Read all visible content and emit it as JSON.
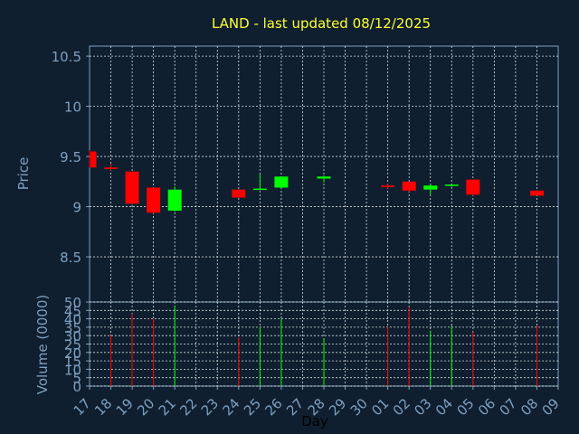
{
  "chart_data": [
    {
      "type": "candlestick",
      "title": "LAND - last updated 08/12/2025",
      "ylabel": "Price",
      "ylim": [
        8.05,
        10.6
      ],
      "yticks": [
        "8.5",
        "9",
        "9.5",
        "10",
        "10.5"
      ],
      "grid": true,
      "colors": {
        "up": "#00ff00",
        "down": "#ff0000",
        "title": "#ffff33",
        "axis": "#7f9fbf",
        "background": "#0f1f2f"
      },
      "candles": [
        {
          "day": "17",
          "open": 9.55,
          "high": 9.56,
          "low": 9.39,
          "close": 9.39
        },
        {
          "day": "18",
          "open": 9.39,
          "high": 9.43,
          "low": 9.36,
          "close": 9.38
        },
        {
          "day": "19",
          "open": 9.35,
          "high": 9.35,
          "low": 9.02,
          "close": 9.03
        },
        {
          "day": "20",
          "open": 9.19,
          "high": 9.19,
          "low": 8.93,
          "close": 8.94
        },
        {
          "day": "21",
          "open": 8.96,
          "high": 9.2,
          "low": 8.95,
          "close": 9.17
        },
        {
          "day": "24",
          "open": 9.17,
          "high": 9.17,
          "low": 9.09,
          "close": 9.09
        },
        {
          "day": "25",
          "open": 9.17,
          "high": 9.32,
          "low": 9.17,
          "close": 9.18
        },
        {
          "day": "26",
          "open": 9.19,
          "high": 9.3,
          "low": 9.19,
          "close": 9.3
        },
        {
          "day": "28",
          "open": 9.28,
          "high": 9.31,
          "low": 9.24,
          "close": 9.3
        },
        {
          "day": "01",
          "open": 9.21,
          "high": 9.23,
          "low": 9.18,
          "close": 9.2
        },
        {
          "day": "02",
          "open": 9.25,
          "high": 9.25,
          "low": 9.15,
          "close": 9.16
        },
        {
          "day": "03",
          "open": 9.17,
          "high": 9.23,
          "low": 9.12,
          "close": 9.21
        },
        {
          "day": "04",
          "open": 9.21,
          "high": 9.22,
          "low": 9.2,
          "close": 9.22
        },
        {
          "day": "05",
          "open": 9.27,
          "high": 9.27,
          "low": 9.11,
          "close": 9.12
        },
        {
          "day": "08",
          "open": 9.16,
          "high": 9.16,
          "low": 9.11,
          "close": 9.11
        }
      ]
    },
    {
      "type": "bar",
      "ylabel": "Volume (0000)",
      "xlabel": "Day",
      "ylim": [
        0,
        50
      ],
      "yticks": [
        "0",
        "5",
        "10",
        "15",
        "20",
        "25",
        "30",
        "35",
        "40",
        "45",
        "50"
      ],
      "grid": true,
      "categories": [
        "17",
        "18",
        "19",
        "20",
        "21",
        "22",
        "23",
        "24",
        "25",
        "26",
        "27",
        "28",
        "29",
        "30",
        "01",
        "02",
        "03",
        "04",
        "05",
        "06",
        "07",
        "08",
        "09"
      ],
      "values": [
        0,
        30,
        43,
        40,
        48,
        0,
        0,
        29,
        35,
        40,
        0,
        28,
        0,
        0,
        35,
        47,
        33,
        36,
        32,
        0,
        0,
        36,
        0
      ],
      "bar_colors": [
        "none",
        "#ff0000",
        "#ff0000",
        "#ff0000",
        "#00ff00",
        "none",
        "none",
        "#ff0000",
        "#00ff00",
        "#00ff00",
        "none",
        "#00ff00",
        "none",
        "none",
        "#ff0000",
        "#ff0000",
        "#00ff00",
        "#00ff00",
        "#ff0000",
        "none",
        "none",
        "#ff0000",
        "none"
      ]
    }
  ]
}
